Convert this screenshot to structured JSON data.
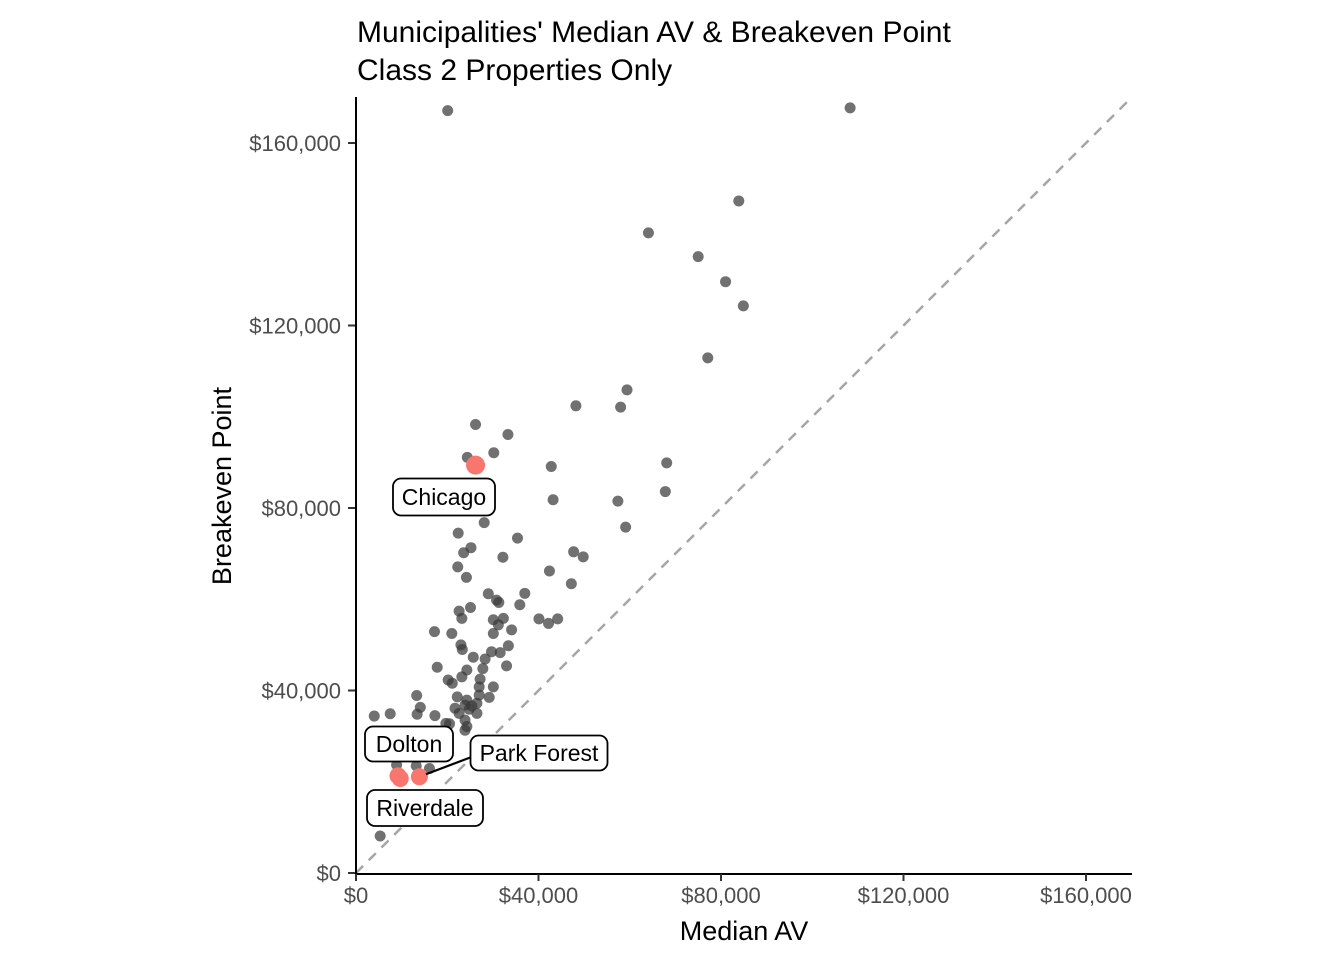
{
  "page": {
    "background": "#ffffff"
  },
  "chart_data": {
    "type": "scatter",
    "title": "Municipalities' Median AV & Breakeven Point",
    "subtitle": "Class 2 Properties Only",
    "xlabel": "Median AV",
    "ylabel": "Breakeven Point",
    "xlim": [
      0,
      170000
    ],
    "ylim": [
      0,
      170000
    ],
    "grid": "off",
    "legend": "none",
    "x_ticks": {
      "values": [
        0,
        40000,
        80000,
        120000,
        160000
      ],
      "labels": [
        "$0",
        "$40,000",
        "$80,000",
        "$120,000",
        "$160,000"
      ]
    },
    "y_ticks": {
      "values": [
        0,
        40000,
        80000,
        120000,
        160000
      ],
      "labels": [
        "$0",
        "$40,000",
        "$80,000",
        "$120,000",
        "$160,000"
      ]
    },
    "reference_line": {
      "meaning": "breakeven parity y = x",
      "style": "dashed",
      "color": "#A6A6A6",
      "from": [
        0,
        0
      ],
      "to": [
        169000,
        169000
      ]
    },
    "series": [
      {
        "name": "Municipalities",
        "color": "#3a3a3a",
        "opacity": 0.72,
        "points": [
          [
            20100,
            167100
          ],
          [
            108300,
            167700
          ],
          [
            83900,
            147300
          ],
          [
            64100,
            140300
          ],
          [
            75000,
            135100
          ],
          [
            81000,
            129600
          ],
          [
            84900,
            124300
          ],
          [
            77100,
            112900
          ],
          [
            59400,
            105900
          ],
          [
            58000,
            102100
          ],
          [
            48200,
            102400
          ],
          [
            26200,
            98300
          ],
          [
            33300,
            96100
          ],
          [
            30200,
            92100
          ],
          [
            24400,
            91100
          ],
          [
            42800,
            89100
          ],
          [
            68100,
            89900
          ],
          [
            67800,
            83600
          ],
          [
            57400,
            81500
          ],
          [
            43200,
            81800
          ],
          [
            28100,
            76800
          ],
          [
            59100,
            75800
          ],
          [
            22400,
            74500
          ],
          [
            35400,
            73400
          ],
          [
            23600,
            70200
          ],
          [
            25200,
            71300
          ],
          [
            47700,
            70400
          ],
          [
            49800,
            69300
          ],
          [
            32200,
            69200
          ],
          [
            42400,
            66200
          ],
          [
            22300,
            67100
          ],
          [
            24200,
            64800
          ],
          [
            47200,
            63400
          ],
          [
            37000,
            61300
          ],
          [
            29000,
            61200
          ],
          [
            30800,
            59800
          ],
          [
            31300,
            59300
          ],
          [
            22600,
            57400
          ],
          [
            25100,
            58200
          ],
          [
            35900,
            58800
          ],
          [
            40100,
            55700
          ],
          [
            42200,
            54700
          ],
          [
            44200,
            55700
          ],
          [
            30100,
            55500
          ],
          [
            32300,
            55800
          ],
          [
            31200,
            54400
          ],
          [
            23200,
            55800
          ],
          [
            17200,
            52900
          ],
          [
            21000,
            52500
          ],
          [
            34100,
            53300
          ],
          [
            30100,
            52500
          ],
          [
            23000,
            50000
          ],
          [
            23300,
            49000
          ],
          [
            33400,
            49800
          ],
          [
            29700,
            48500
          ],
          [
            31600,
            48300
          ],
          [
            25700,
            47300
          ],
          [
            28300,
            46900
          ],
          [
            33000,
            45400
          ],
          [
            17800,
            45100
          ],
          [
            24300,
            44500
          ],
          [
            27800,
            44800
          ],
          [
            23200,
            43000
          ],
          [
            20200,
            42300
          ],
          [
            21100,
            41600
          ],
          [
            27200,
            42500
          ],
          [
            27000,
            40800
          ],
          [
            30100,
            40800
          ],
          [
            27000,
            39000
          ],
          [
            22200,
            38600
          ],
          [
            24300,
            37900
          ],
          [
            29200,
            38500
          ],
          [
            23900,
            36800
          ],
          [
            25400,
            36600
          ],
          [
            26500,
            37200
          ],
          [
            24800,
            35900
          ],
          [
            21700,
            36100
          ],
          [
            22600,
            35000
          ],
          [
            26500,
            35000
          ],
          [
            23900,
            33500
          ],
          [
            20500,
            32700
          ],
          [
            24300,
            32100
          ],
          [
            13300,
            38900
          ],
          [
            14100,
            36300
          ],
          [
            13400,
            34800
          ],
          [
            4000,
            34400
          ],
          [
            7500,
            34900
          ],
          [
            17300,
            34500
          ],
          [
            19700,
            32800
          ],
          [
            23900,
            31300
          ],
          [
            8900,
            23700
          ],
          [
            13200,
            23500
          ],
          [
            16100,
            22900
          ],
          [
            5300,
            8100
          ]
        ]
      },
      {
        "name": "Highlighted municipalities",
        "color": "#F8766D",
        "points": [
          {
            "label": "Chicago",
            "x": 26200,
            "y": 89400
          },
          {
            "label": "Dolton",
            "x": 9200,
            "y": 21300
          },
          {
            "label": "Riverdale",
            "x": 9700,
            "y": 20700
          },
          {
            "label": "Park Forest",
            "x": 13900,
            "y": 21100
          }
        ]
      }
    ],
    "annotations": [
      {
        "label": "Chicago"
      },
      {
        "label": "Dolton"
      },
      {
        "label": "Park Forest",
        "leader_line": true
      },
      {
        "label": "Riverdale"
      }
    ]
  }
}
